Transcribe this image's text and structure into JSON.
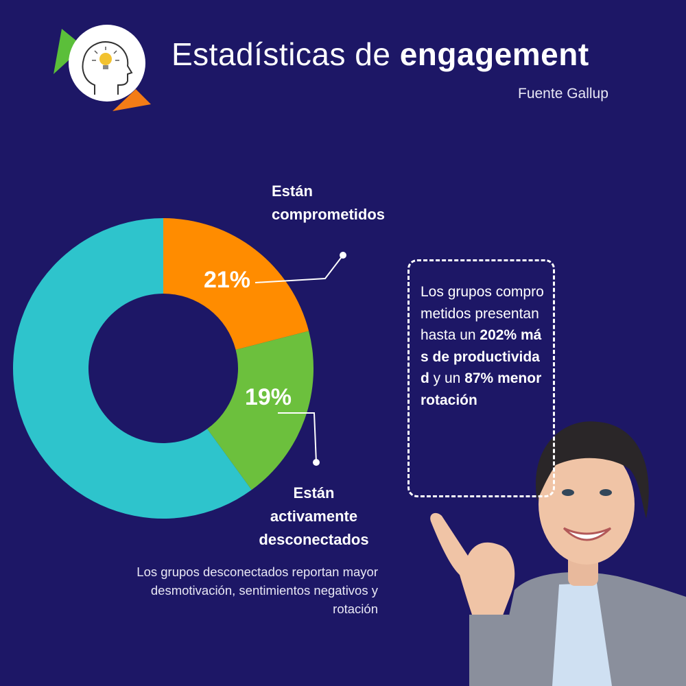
{
  "header": {
    "title_regular": "Estadísticas de ",
    "title_bold": "engagement",
    "source": "Fuente Gallup"
  },
  "chart_data": {
    "type": "pie",
    "variant": "donut",
    "slices": [
      {
        "name": "Están comprometidos",
        "value": 21,
        "color": "#ff8c00",
        "label": "21%"
      },
      {
        "name": "Están activamente desconectados",
        "value": 19,
        "color": "#6cc03d",
        "label": "19%"
      },
      {
        "name": "",
        "value": 60,
        "color": "#2ec4cc",
        "label": ""
      }
    ]
  },
  "labels": {
    "engaged_line1": "Están",
    "engaged_line2": "comprometidos",
    "disengaged_line1": "Están",
    "disengaged_line2": "activamente",
    "disengaged_line3": "desconectados"
  },
  "disengaged_note": "Los grupos desconectados reportan mayor desmotivación, sentimientos negativos y rotación",
  "callout": {
    "t1": "Los grupos comprometidos presentan hasta un ",
    "b1": "202% más de productividad",
    "t2": " y un ",
    "b2": "87% menor rotación"
  },
  "colors": {
    "background": "#1d1766",
    "logo_green": "#5bbf3a",
    "logo_orange": "#f47c16"
  },
  "icons": {
    "logo": "head-lightbulb-icon",
    "photo": "smiling-woman-pointing"
  }
}
